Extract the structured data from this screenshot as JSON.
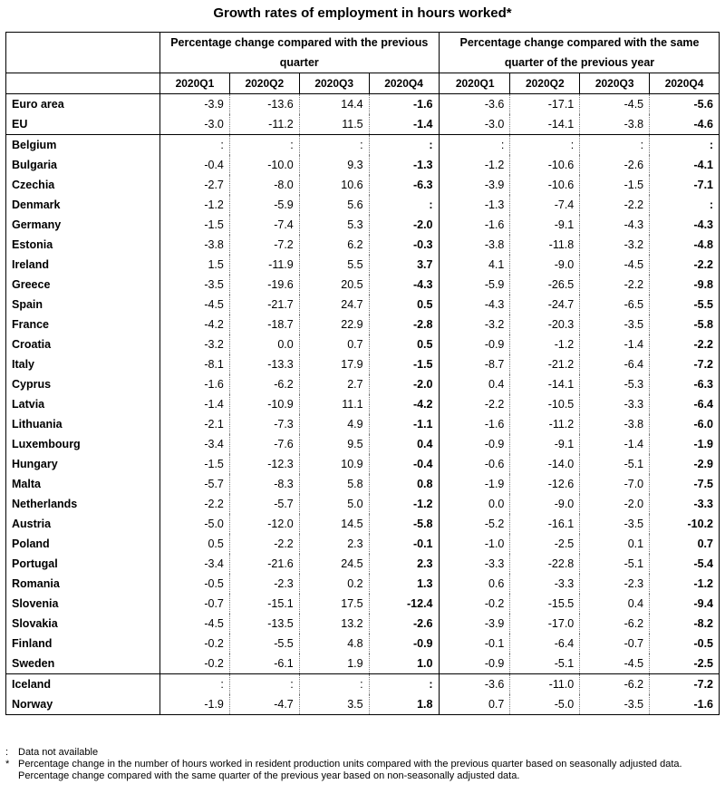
{
  "title": "Growth rates of employment in hours worked*",
  "group_headers": {
    "qoq": "Percentage change compared with the previous quarter",
    "yoy": "Percentage change compared with the same quarter of the previous year"
  },
  "quarters_qoq": [
    "2020Q1",
    "2020Q2",
    "2020Q3",
    "2020Q4"
  ],
  "quarters_yoy": [
    "2020Q1",
    "2020Q2",
    "2020Q3",
    "2020Q4"
  ],
  "rows": [
    {
      "country": "Euro area",
      "qoq": [
        "-3.9",
        "-13.6",
        "14.4",
        "-1.6"
      ],
      "yoy": [
        "-3.6",
        "-17.1",
        "-4.5",
        "-5.6"
      ]
    },
    {
      "country": "EU",
      "qoq": [
        "-3.0",
        "-11.2",
        "11.5",
        "-1.4"
      ],
      "yoy": [
        "-3.0",
        "-14.1",
        "-3.8",
        "-4.6"
      ]
    },
    {
      "country": "Belgium",
      "qoq": [
        ":",
        ":",
        ":",
        ":"
      ],
      "yoy": [
        ":",
        ":",
        ":",
        ":"
      ]
    },
    {
      "country": "Bulgaria",
      "qoq": [
        "-0.4",
        "-10.0",
        "9.3",
        "-1.3"
      ],
      "yoy": [
        "-1.2",
        "-10.6",
        "-2.6",
        "-4.1"
      ]
    },
    {
      "country": "Czechia",
      "qoq": [
        "-2.7",
        "-8.0",
        "10.6",
        "-6.3"
      ],
      "yoy": [
        "-3.9",
        "-10.6",
        "-1.5",
        "-7.1"
      ]
    },
    {
      "country": "Denmark",
      "qoq": [
        "-1.2",
        "-5.9",
        "5.6",
        ":"
      ],
      "yoy": [
        "-1.3",
        "-7.4",
        "-2.2",
        ":"
      ]
    },
    {
      "country": "Germany",
      "qoq": [
        "-1.5",
        "-7.4",
        "5.3",
        "-2.0"
      ],
      "yoy": [
        "-1.6",
        "-9.1",
        "-4.3",
        "-4.3"
      ]
    },
    {
      "country": "Estonia",
      "qoq": [
        "-3.8",
        "-7.2",
        "6.2",
        "-0.3"
      ],
      "yoy": [
        "-3.8",
        "-11.8",
        "-3.2",
        "-4.8"
      ]
    },
    {
      "country": "Ireland",
      "qoq": [
        "1.5",
        "-11.9",
        "5.5",
        "3.7"
      ],
      "yoy": [
        "4.1",
        "-9.0",
        "-4.5",
        "-2.2"
      ]
    },
    {
      "country": "Greece",
      "qoq": [
        "-3.5",
        "-19.6",
        "20.5",
        "-4.3"
      ],
      "yoy": [
        "-5.9",
        "-26.5",
        "-2.2",
        "-9.8"
      ]
    },
    {
      "country": "Spain",
      "qoq": [
        "-4.5",
        "-21.7",
        "24.7",
        "0.5"
      ],
      "yoy": [
        "-4.3",
        "-24.7",
        "-6.5",
        "-5.5"
      ]
    },
    {
      "country": "France",
      "qoq": [
        "-4.2",
        "-18.7",
        "22.9",
        "-2.8"
      ],
      "yoy": [
        "-3.2",
        "-20.3",
        "-3.5",
        "-5.8"
      ]
    },
    {
      "country": "Croatia",
      "qoq": [
        "-3.2",
        "0.0",
        "0.7",
        "0.5"
      ],
      "yoy": [
        "-0.9",
        "-1.2",
        "-1.4",
        "-2.2"
      ]
    },
    {
      "country": "Italy",
      "qoq": [
        "-8.1",
        "-13.3",
        "17.9",
        "-1.5"
      ],
      "yoy": [
        "-8.7",
        "-21.2",
        "-6.4",
        "-7.2"
      ]
    },
    {
      "country": "Cyprus",
      "qoq": [
        "-1.6",
        "-6.2",
        "2.7",
        "-2.0"
      ],
      "yoy": [
        "0.4",
        "-14.1",
        "-5.3",
        "-6.3"
      ]
    },
    {
      "country": "Latvia",
      "qoq": [
        "-1.4",
        "-10.9",
        "11.1",
        "-4.2"
      ],
      "yoy": [
        "-2.2",
        "-10.5",
        "-3.3",
        "-6.4"
      ]
    },
    {
      "country": "Lithuania",
      "qoq": [
        "-2.1",
        "-7.3",
        "4.9",
        "-1.1"
      ],
      "yoy": [
        "-1.6",
        "-11.2",
        "-3.8",
        "-6.0"
      ]
    },
    {
      "country": "Luxembourg",
      "qoq": [
        "-3.4",
        "-7.6",
        "9.5",
        "0.4"
      ],
      "yoy": [
        "-0.9",
        "-9.1",
        "-1.4",
        "-1.9"
      ]
    },
    {
      "country": "Hungary",
      "qoq": [
        "-1.5",
        "-12.3",
        "10.9",
        "-0.4"
      ],
      "yoy": [
        "-0.6",
        "-14.0",
        "-5.1",
        "-2.9"
      ]
    },
    {
      "country": "Malta",
      "qoq": [
        "-5.7",
        "-8.3",
        "5.8",
        "0.8"
      ],
      "yoy": [
        "-1.9",
        "-12.6",
        "-7.0",
        "-7.5"
      ]
    },
    {
      "country": "Netherlands",
      "qoq": [
        "-2.2",
        "-5.7",
        "5.0",
        "-1.2"
      ],
      "yoy": [
        "0.0",
        "-9.0",
        "-2.0",
        "-3.3"
      ]
    },
    {
      "country": "Austria",
      "qoq": [
        "-5.0",
        "-12.0",
        "14.5",
        "-5.8"
      ],
      "yoy": [
        "-5.2",
        "-16.1",
        "-3.5",
        "-10.2"
      ]
    },
    {
      "country": "Poland",
      "qoq": [
        "0.5",
        "-2.2",
        "2.3",
        "-0.1"
      ],
      "yoy": [
        "-1.0",
        "-2.5",
        "0.1",
        "0.7"
      ]
    },
    {
      "country": "Portugal",
      "qoq": [
        "-3.4",
        "-21.6",
        "24.5",
        "2.3"
      ],
      "yoy": [
        "-3.3",
        "-22.8",
        "-5.1",
        "-5.4"
      ]
    },
    {
      "country": "Romania",
      "qoq": [
        "-0.5",
        "-2.3",
        "0.2",
        "1.3"
      ],
      "yoy": [
        "0.6",
        "-3.3",
        "-2.3",
        "-1.2"
      ]
    },
    {
      "country": "Slovenia",
      "qoq": [
        "-0.7",
        "-15.1",
        "17.5",
        "-12.4"
      ],
      "yoy": [
        "-0.2",
        "-15.5",
        "0.4",
        "-9.4"
      ]
    },
    {
      "country": "Slovakia",
      "qoq": [
        "-4.5",
        "-13.5",
        "13.2",
        "-2.6"
      ],
      "yoy": [
        "-3.9",
        "-17.0",
        "-6.2",
        "-8.2"
      ]
    },
    {
      "country": "Finland",
      "qoq": [
        "-0.2",
        "-5.5",
        "4.8",
        "-0.9"
      ],
      "yoy": [
        "-0.1",
        "-6.4",
        "-0.7",
        "-0.5"
      ]
    },
    {
      "country": "Sweden",
      "qoq": [
        "-0.2",
        "-6.1",
        "1.9",
        "1.0"
      ],
      "yoy": [
        "-0.9",
        "-5.1",
        "-4.5",
        "-2.5"
      ]
    },
    {
      "country": "Iceland",
      "qoq": [
        ":",
        ":",
        ":",
        ":"
      ],
      "yoy": [
        "-3.6",
        "-11.0",
        "-6.2",
        "-7.2"
      ]
    },
    {
      "country": "Norway",
      "qoq": [
        "-1.9",
        "-4.7",
        "3.5",
        "1.8"
      ],
      "yoy": [
        "0.7",
        "-5.0",
        "-3.5",
        "-1.6"
      ]
    }
  ],
  "footnotes": [
    {
      "symbol": ":",
      "text": "Data not available"
    },
    {
      "symbol": "*",
      "text": "Percentage change in the number of hours worked in resident production units compared with the previous quarter based on seasonally adjusted data. Percentage change compared with the same quarter of the previous year based on non-seasonally adjusted data."
    }
  ]
}
